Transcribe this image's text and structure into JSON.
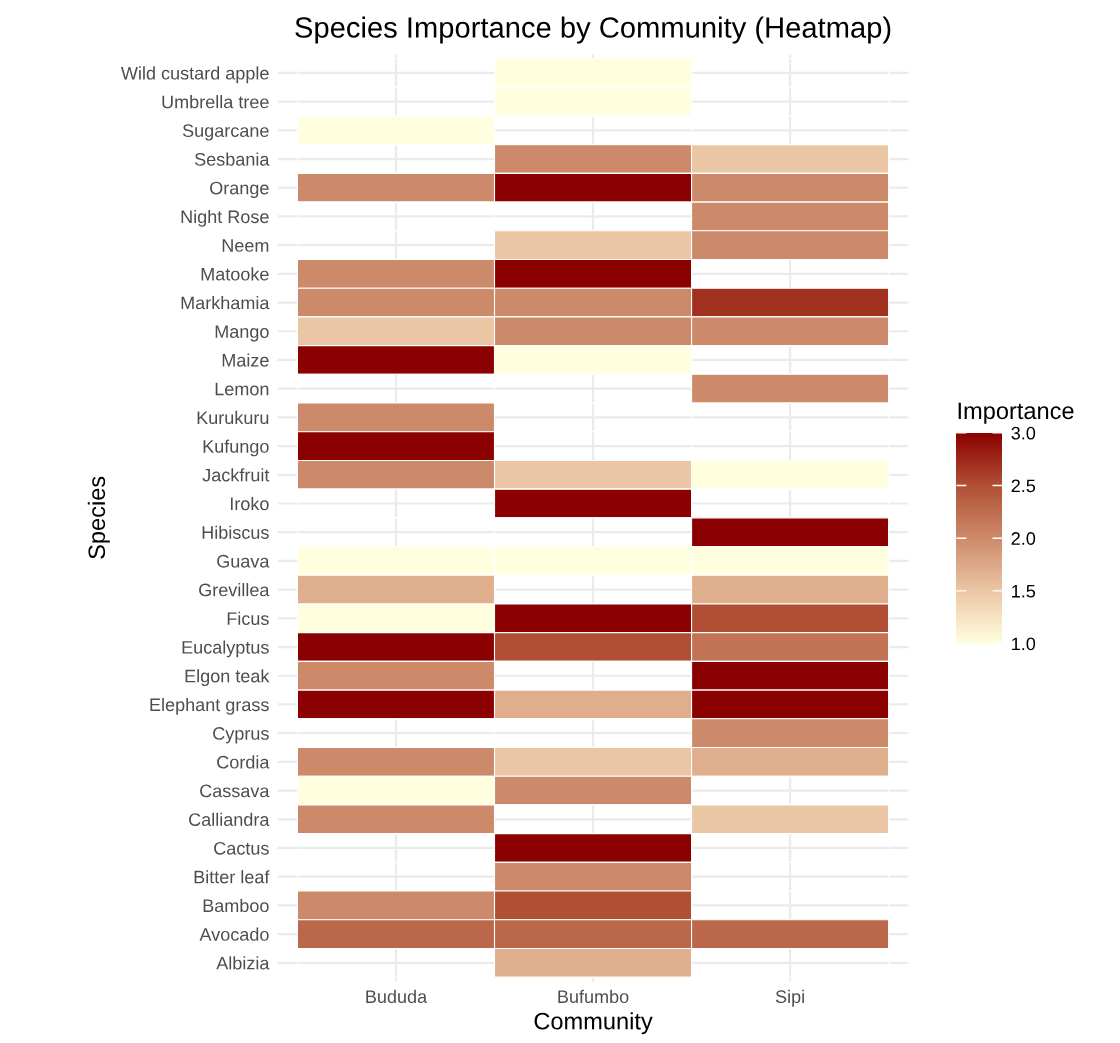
{
  "chart_data": {
    "type": "heatmap",
    "title": "Species Importance by Community (Heatmap)",
    "xlabel": "Community",
    "ylabel": "Species",
    "clabel": "Importance",
    "categories": [
      "Bududa",
      "Bufumbo",
      "Sipi"
    ],
    "y_categories": [
      "Wild custard apple",
      "Umbrella tree",
      "Sugarcane",
      "Sesbania",
      "Orange",
      "Night Rose",
      "Neem",
      "Matooke",
      "Markhamia",
      "Mango",
      "Maize",
      "Lemon",
      "Kurukuru",
      "Kufungo",
      "Jackfruit",
      "Iroko",
      "Hibiscus",
      "Guava",
      "Grevillea",
      "Ficus",
      "Eucalyptus",
      "Elgon teak",
      "Elephant grass",
      "Cyprus",
      "Cordia",
      "Cassava",
      "Calliandra",
      "Cactus",
      "Bitter leaf",
      "Bamboo",
      "Avocado",
      "Albizia"
    ],
    "cells": [
      [
        null,
        1,
        null
      ],
      [
        null,
        1,
        null
      ],
      [
        1,
        null,
        null
      ],
      [
        null,
        2,
        1.5
      ],
      [
        2,
        3,
        2
      ],
      [
        null,
        null,
        2
      ],
      [
        null,
        1.5,
        2
      ],
      [
        2,
        3,
        null
      ],
      [
        2,
        2,
        2.7
      ],
      [
        1.5,
        2,
        2
      ],
      [
        3,
        1,
        null
      ],
      [
        null,
        null,
        2
      ],
      [
        2,
        null,
        null
      ],
      [
        3,
        null,
        null
      ],
      [
        2,
        1.5,
        1
      ],
      [
        null,
        3,
        null
      ],
      [
        null,
        null,
        3
      ],
      [
        1,
        1,
        1
      ],
      [
        1.7,
        null,
        1.7
      ],
      [
        1,
        3,
        2.5
      ],
      [
        3,
        2.5,
        2.2
      ],
      [
        2,
        null,
        3
      ],
      [
        3,
        1.7,
        3
      ],
      [
        null,
        null,
        2
      ],
      [
        2,
        1.5,
        1.7
      ],
      [
        1,
        2,
        null
      ],
      [
        2,
        null,
        1.5
      ],
      [
        null,
        3,
        null
      ],
      [
        null,
        2,
        null
      ],
      [
        2,
        2.5,
        null
      ],
      [
        2.3,
        2.3,
        2.3
      ],
      [
        null,
        1.7,
        null
      ]
    ],
    "clim": [
      1.0,
      3.0
    ],
    "cticks": [
      {
        "value": 1.0,
        "label": "1.0"
      },
      {
        "value": 1.5,
        "label": "1.5"
      },
      {
        "value": 2.0,
        "label": "2.0"
      },
      {
        "value": 2.5,
        "label": "2.5"
      },
      {
        "value": 3.0,
        "label": "3.0"
      }
    ],
    "grid": true
  }
}
